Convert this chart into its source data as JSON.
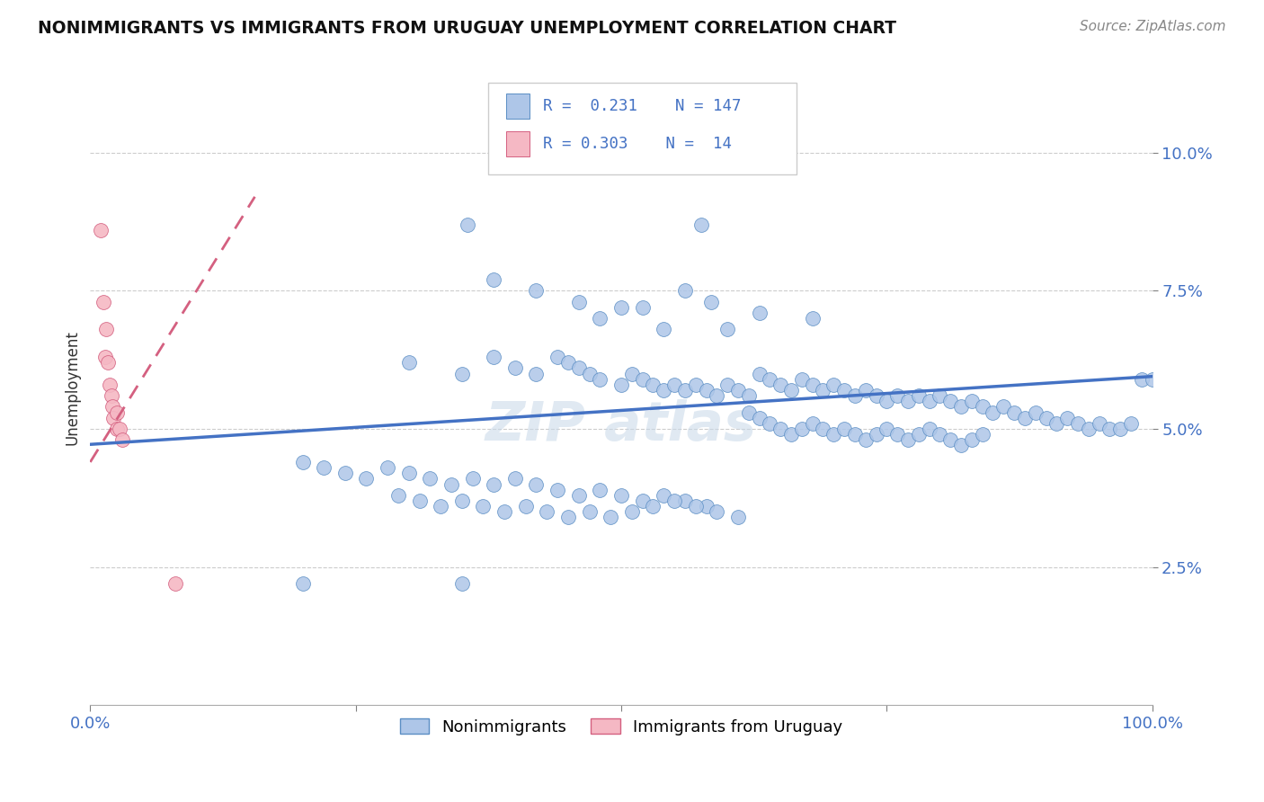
{
  "title": "NONIMMIGRANTS VS IMMIGRANTS FROM URUGUAY UNEMPLOYMENT CORRELATION CHART",
  "source": "Source: ZipAtlas.com",
  "ylabel": "Unemployment",
  "xlabel": "",
  "xlim": [
    0.0,
    1.0
  ],
  "ylim": [
    0.0,
    0.115
  ],
  "yticks": [
    0.025,
    0.05,
    0.075,
    0.1
  ],
  "ytick_labels": [
    "2.5%",
    "5.0%",
    "7.5%",
    "10.0%"
  ],
  "xtick_labels": [
    "0.0%",
    "100.0%"
  ],
  "xtick_positions": [
    0.0,
    1.0
  ],
  "nonimmigrant_R": 0.231,
  "nonimmigrant_N": 147,
  "immigrant_R": 0.303,
  "immigrant_N": 14,
  "blue_color": "#aec6e8",
  "blue_edge_color": "#5b8ec4",
  "blue_line_color": "#4472c4",
  "pink_color": "#f5b8c4",
  "pink_edge_color": "#d46080",
  "pink_line_color": "#d46080",
  "tick_color": "#4472c4",
  "blue_trend_x": [
    0.0,
    1.0
  ],
  "blue_trend_y": [
    0.0472,
    0.0595
  ],
  "pink_trend_x": [
    0.0,
    0.155
  ],
  "pink_trend_y": [
    0.044,
    0.092
  ]
}
